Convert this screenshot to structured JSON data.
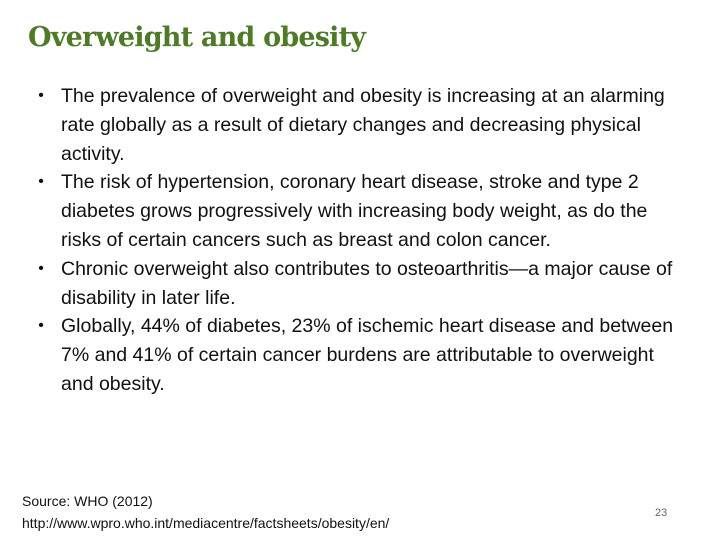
{
  "slide": {
    "title": "Overweight and obesity",
    "title_color": "#4f7a28",
    "bullets": [
      {
        "marker": "•",
        "text": "The prevalence of overweight and obesity is increasing at an alarming rate globally as a result of dietary changes and decreasing physical activity."
      },
      {
        "marker": "•",
        "text": "The risk of hypertension, coronary heart disease, stroke and type 2 diabetes grows progressively with increasing body weight, as do the risks of certain cancers such as breast and colon cancer."
      },
      {
        "marker": "•",
        "text": "Chronic overweight also contributes to osteoarthritis—a major cause of disability in later life."
      },
      {
        "marker": "•",
        "text": "Globally, 44% of diabetes, 23% of ischemic heart disease and between 7% and 41% of certain cancer burdens are attributable to overweight and obesity."
      }
    ],
    "source_line1": "Source: WHO (2012)",
    "source_line2": "http://www.wpro.who.int/mediacentre/factsheets/obesity/en/",
    "page_number": "23"
  }
}
